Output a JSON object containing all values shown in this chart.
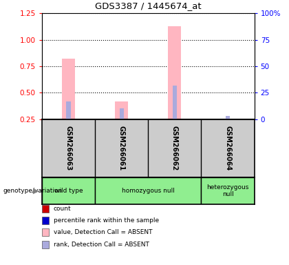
{
  "title": "GDS3387 / 1445674_at",
  "samples": [
    "GSM266063",
    "GSM266061",
    "GSM266062",
    "GSM266064"
  ],
  "genotype_groups": [
    {
      "label": "wild type",
      "n_samples": 1,
      "color": "#90EE90"
    },
    {
      "label": "homozygous null",
      "n_samples": 2,
      "color": "#90EE90"
    },
    {
      "label": "heterozygous\nnull",
      "n_samples": 1,
      "color": "#90EE90"
    }
  ],
  "value_absent": [
    0.82,
    0.42,
    1.13,
    0.24
  ],
  "rank_absent": [
    0.42,
    0.35,
    0.57,
    0.28
  ],
  "left_yticks": [
    0.25,
    0.5,
    0.75,
    1.0,
    1.25
  ],
  "right_yticks": [
    0,
    25,
    50,
    75,
    100
  ],
  "right_yticklabels": [
    "0",
    "25",
    "50",
    "75",
    "100%"
  ],
  "ylim": [
    0.25,
    1.25
  ],
  "right_ylim": [
    0,
    100
  ],
  "color_value_absent": "#FFB6C1",
  "color_rank_absent": "#AAAADD",
  "color_count": "#CC0000",
  "color_percentile": "#0000CC",
  "background_sample": "#CCCCCC",
  "legend_items": [
    {
      "color": "#CC0000",
      "label": "count"
    },
    {
      "color": "#0000CC",
      "label": "percentile rank within the sample"
    },
    {
      "color": "#FFB6C1",
      "label": "value, Detection Call = ABSENT"
    },
    {
      "color": "#AAAADD",
      "label": "rank, Detection Call = ABSENT"
    }
  ]
}
